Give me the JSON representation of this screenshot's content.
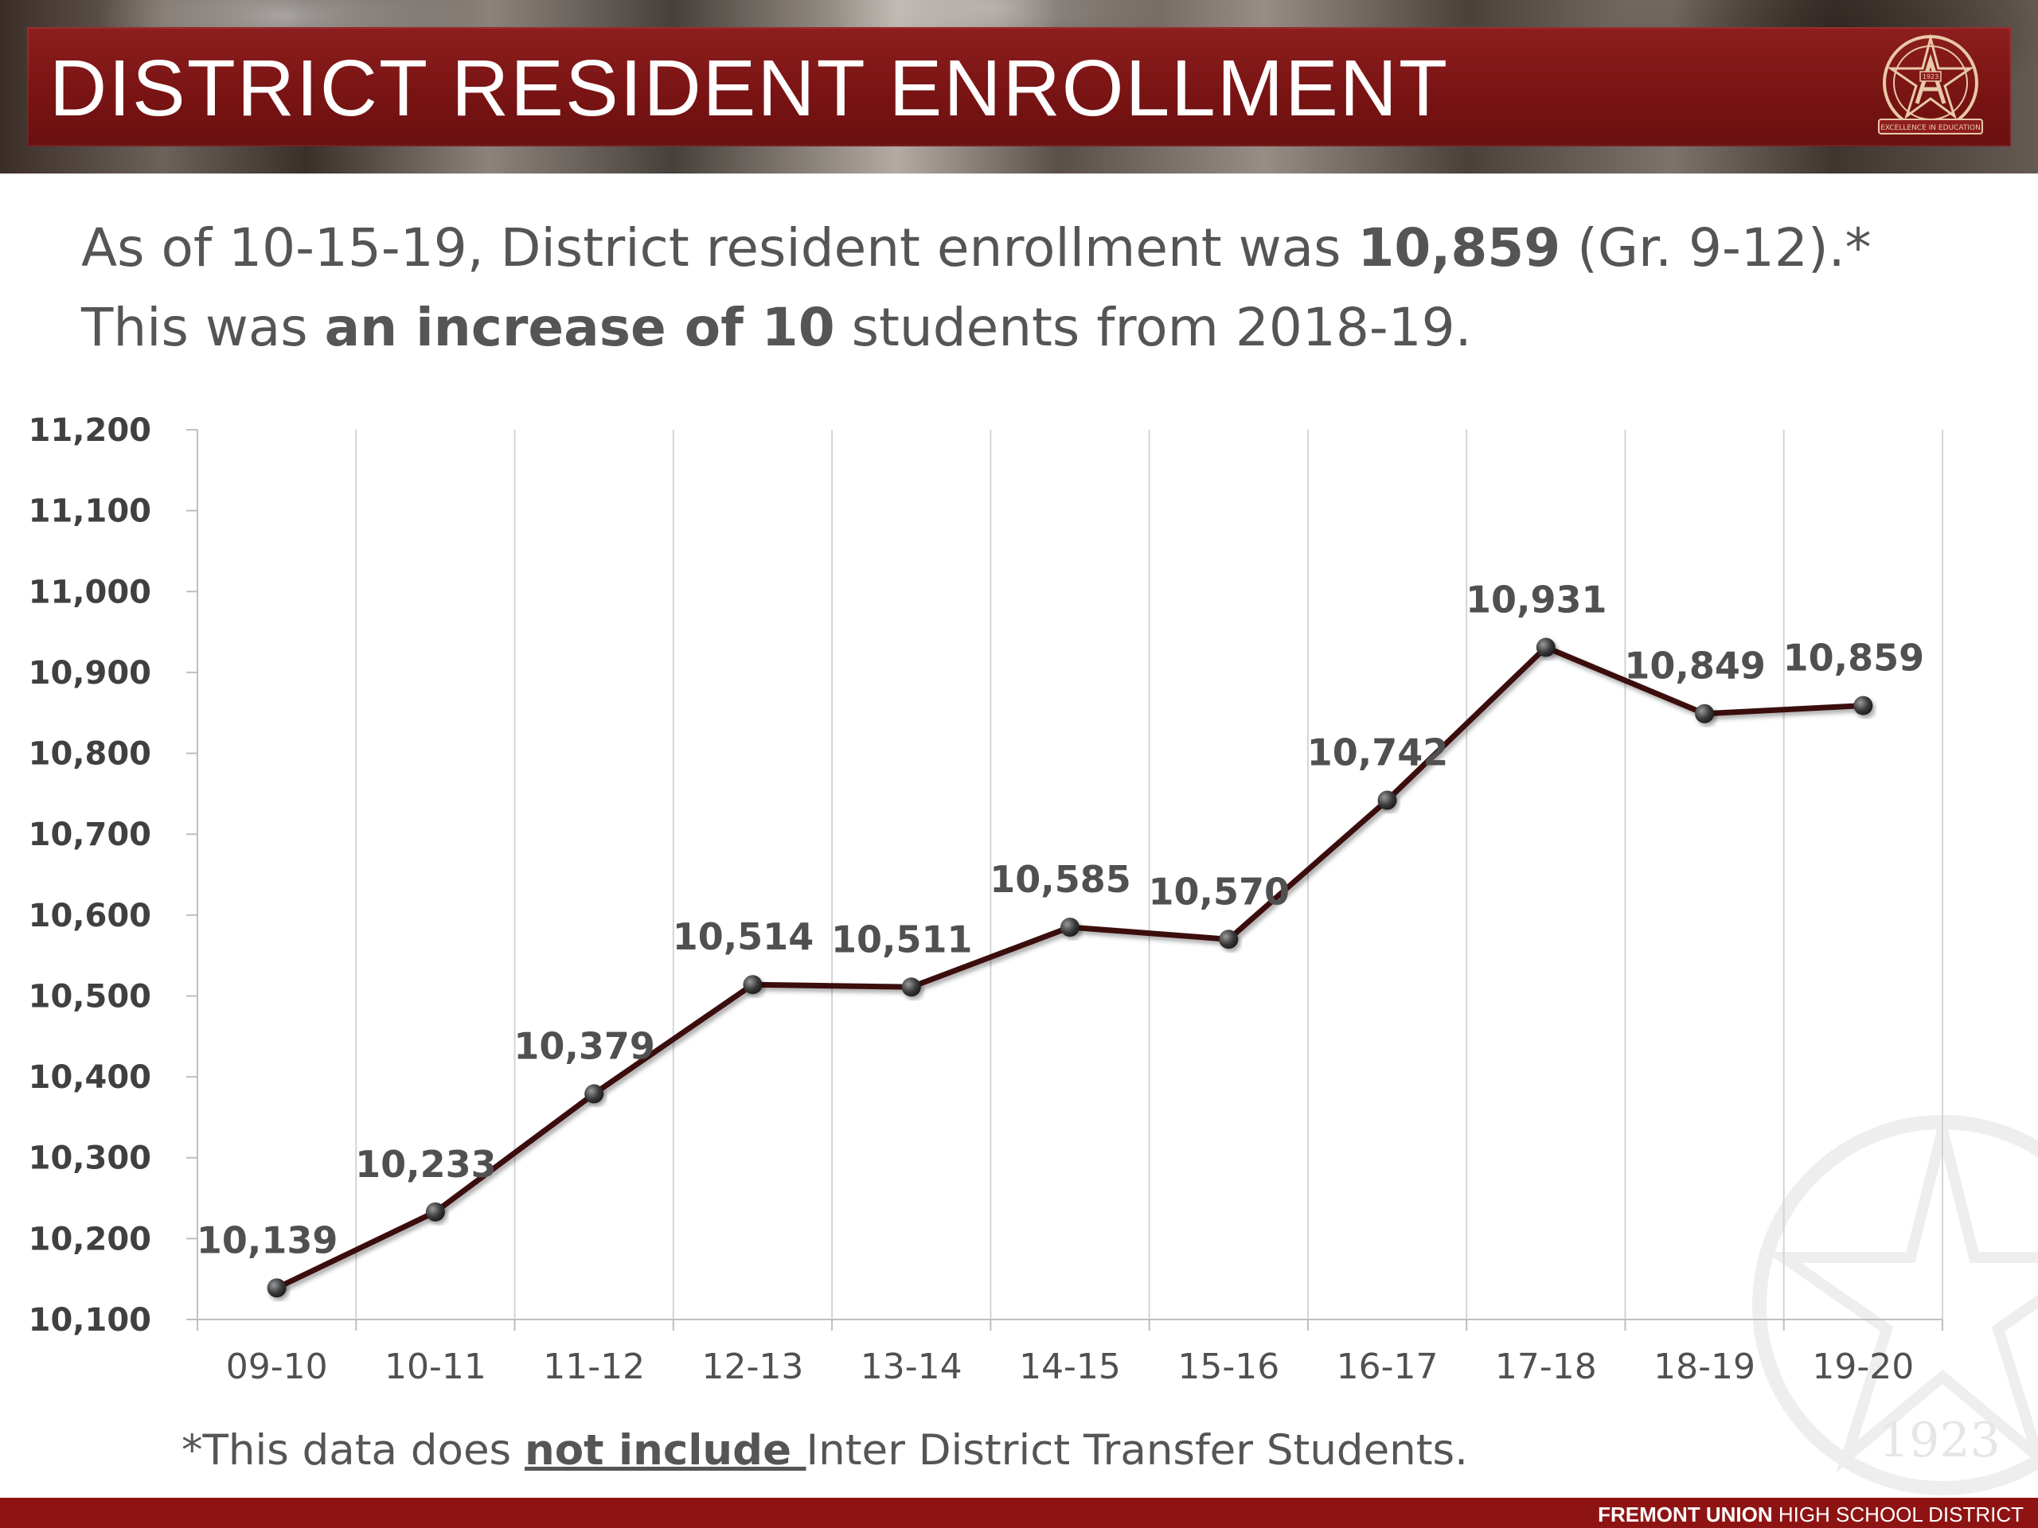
{
  "header": {
    "title": "DISTRICT RESIDENT ENROLLMENT",
    "logo_text": "EXCELLENCE IN EDUCATION",
    "logo_year": "1923"
  },
  "summary": {
    "line1_pre": "As of 10-15-19, District resident enrollment was ",
    "line1_bold": "10,859",
    "line1_post": " (Gr. 9-12).*",
    "line2_pre": "This was ",
    "line2_bold": "an increase of 10",
    "line2_post": " students from 2018-19."
  },
  "footnote": {
    "pre": "*This data does ",
    "underlined": "not include ",
    "post": "Inter District Transfer Students."
  },
  "brand": {
    "bold": "FREMONT UNION",
    "rest": " HIGH SCHOOL DISTRICT"
  },
  "watermark_year": "1923",
  "colors": {
    "title_bar": "#8e1e1f",
    "line": "#3b0e0e",
    "marker": "#3c3c3c",
    "text": "#555555",
    "footer_bar": "#8e1413"
  },
  "chart_data": {
    "type": "line",
    "title": "",
    "xlabel": "",
    "ylabel": "",
    "categories": [
      "09-10",
      "10-11",
      "11-12",
      "12-13",
      "13-14",
      "14-15",
      "15-16",
      "16-17",
      "17-18",
      "18-19",
      "19-20"
    ],
    "values": [
      10139,
      10233,
      10379,
      10514,
      10511,
      10585,
      10570,
      10742,
      10931,
      10849,
      10859
    ],
    "data_labels": [
      "10,139",
      "10,233",
      "10,379",
      "10,514",
      "10,511",
      "10,585",
      "10,570",
      "10,742",
      "10,931",
      "10,849",
      "10,859"
    ],
    "ylim": [
      10100,
      11200
    ],
    "yticks": [
      10100,
      10200,
      10300,
      10400,
      10500,
      10600,
      10700,
      10800,
      10900,
      11000,
      11100,
      11200
    ],
    "ytick_labels": [
      "10,100",
      "10,200",
      "10,300",
      "10,400",
      "10,500",
      "10,600",
      "10,700",
      "10,800",
      "10,900",
      "11,000",
      "11,100",
      "11,200"
    ],
    "grid": "vertical",
    "legend": "none"
  }
}
